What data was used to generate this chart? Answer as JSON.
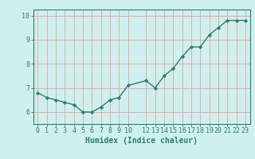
{
  "x": [
    0,
    1,
    2,
    3,
    4,
    5,
    6,
    7,
    8,
    9,
    10,
    12,
    13,
    14,
    15,
    16,
    17,
    18,
    19,
    20,
    21,
    22,
    23
  ],
  "y": [
    6.8,
    6.6,
    6.5,
    6.4,
    6.3,
    6.0,
    6.0,
    6.2,
    6.5,
    6.6,
    7.1,
    7.3,
    7.0,
    7.5,
    7.8,
    8.3,
    8.7,
    8.7,
    9.2,
    9.5,
    9.8,
    9.8,
    9.8
  ],
  "line_color": "#2e7d6e",
  "bg_color": "#cff0ee",
  "grid_color": "#e8a0a0",
  "xlabel": "Humidex (Indice chaleur)",
  "ylim": [
    5.5,
    10.25
  ],
  "xlim": [
    -0.5,
    23.5
  ],
  "yticks": [
    6,
    7,
    8,
    9,
    10
  ],
  "xticks": [
    0,
    1,
    2,
    3,
    4,
    5,
    6,
    7,
    8,
    9,
    10,
    12,
    13,
    14,
    15,
    16,
    17,
    18,
    19,
    20,
    21,
    22,
    23
  ],
  "xtick_labels": [
    "0",
    "1",
    "2",
    "3",
    "4",
    "5",
    "6",
    "7",
    "8",
    "9",
    "10",
    "12",
    "13",
    "14",
    "15",
    "16",
    "17",
    "18",
    "19",
    "20",
    "21",
    "22",
    "23"
  ],
  "marker": "D",
  "marker_size": 2.2,
  "line_width": 1.0,
  "tick_color": "#2e7d6e",
  "label_color": "#2e7d6e",
  "label_fontsize": 7.0,
  "tick_fontsize": 6.0,
  "spine_color": "#2e7d6e"
}
